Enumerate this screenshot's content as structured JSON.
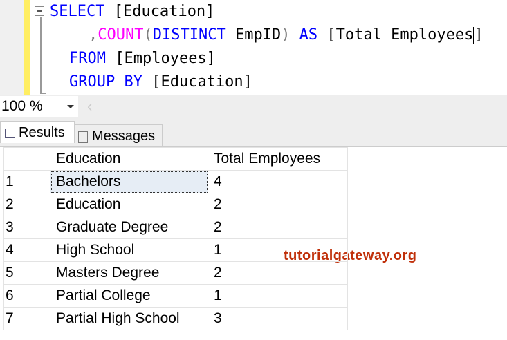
{
  "editor": {
    "lines": [
      {
        "kw1": "SELECT",
        "rest": " [Education]"
      },
      {
        "comma": ",",
        "fn": "COUNT",
        "open": "(",
        "kw": "DISTINCT",
        "mid": " EmpID",
        "close": ")",
        "kw2": " AS",
        "rest": " [Total Employees",
        "end": "]"
      },
      {
        "kw": "FROM",
        "rest": " [Employees]"
      },
      {
        "kw": "GROUP BY",
        "rest": " [Education]"
      }
    ]
  },
  "zoom": {
    "value": "100 %"
  },
  "tabs": [
    {
      "label": "Results",
      "icon": "grid-icon"
    },
    {
      "label": "Messages",
      "icon": "messages-icon"
    }
  ],
  "watermark": "tutorialgateway.org",
  "results": {
    "columns": [
      "",
      "Education",
      "Total Employees"
    ],
    "rows": [
      [
        "1",
        "Bachelors",
        "4"
      ],
      [
        "2",
        "Education",
        "2"
      ],
      [
        "3",
        "Graduate Degree",
        "2"
      ],
      [
        "4",
        "High School",
        "1"
      ],
      [
        "5",
        "Masters Degree",
        "2"
      ],
      [
        "6",
        "Partial College",
        "1"
      ],
      [
        "7",
        "Partial High School",
        "3"
      ]
    ]
  }
}
